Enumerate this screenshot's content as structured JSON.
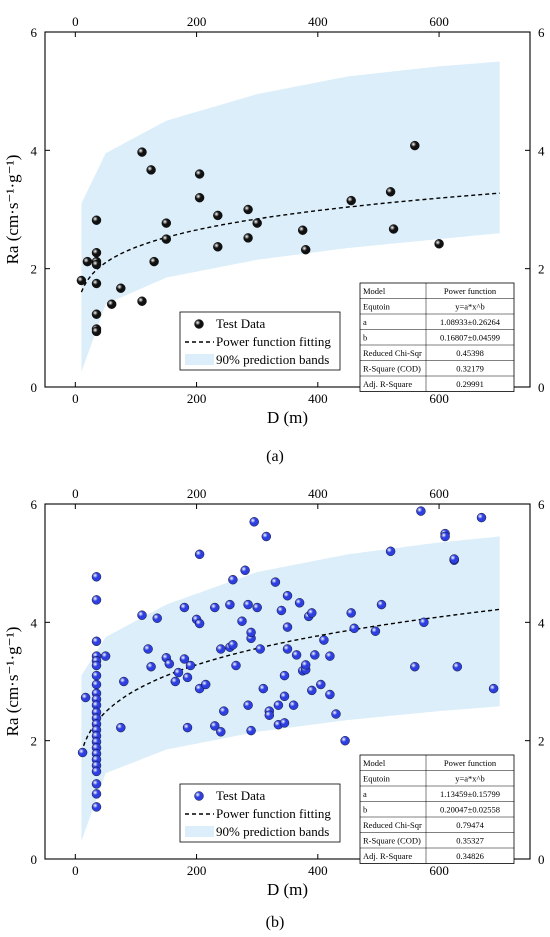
{
  "panels": [
    {
      "caption": "(a)",
      "legend": {
        "point": "Test Data",
        "fit": "Power function fitting",
        "band": "90% prediction bands"
      },
      "table": [
        [
          "Model",
          "Power function"
        ],
        [
          "Equtoin",
          "y=a*x^b"
        ],
        [
          "a",
          "1.08933±0.26264"
        ],
        [
          "b",
          "0.16807±0.04599"
        ],
        [
          "Reduced Chi-Sqr",
          "0.45398"
        ],
        [
          "R-Square (COD)",
          "0.32179"
        ],
        [
          "Adj. R-Square",
          "0.29991"
        ]
      ]
    },
    {
      "caption": "(b)",
      "legend": {
        "point": "Test Data",
        "fit": "Power function fitting",
        "band": "90% prediction bands"
      },
      "table": [
        [
          "Model",
          "Power function"
        ],
        [
          "Equtoin",
          "y=a*x^b"
        ],
        [
          "a",
          "1.13459±0.15799"
        ],
        [
          "b",
          "0.20047±0.02558"
        ],
        [
          "Reduced Chi-Sqr",
          "0.79474"
        ],
        [
          "R-Square (COD)",
          "0.35327"
        ],
        [
          "Adj. R-Square",
          "0.34826"
        ]
      ]
    }
  ],
  "chart_data": [
    {
      "type": "scatter",
      "xlabel": "D (m)",
      "ylabel": "Ra (cm·s⁻¹·g⁻¹)",
      "xlim": [
        -50,
        750
      ],
      "ylim": [
        0,
        6
      ],
      "xticks": [
        0,
        200,
        400,
        600
      ],
      "yticks": [
        0,
        2,
        4,
        6
      ],
      "marker_color": "#111111",
      "band_color": "#dbeef9",
      "fit": {
        "a": 1.08933,
        "b": 0.16807,
        "x_start": 10,
        "x_end": 700
      },
      "band_upper": [
        [
          10,
          3.1
        ],
        [
          50,
          3.95
        ],
        [
          150,
          4.5
        ],
        [
          300,
          4.95
        ],
        [
          450,
          5.25
        ],
        [
          600,
          5.42
        ],
        [
          700,
          5.5
        ]
      ],
      "band_lower": [
        [
          10,
          0.25
        ],
        [
          50,
          1.4
        ],
        [
          150,
          1.85
        ],
        [
          300,
          2.15
        ],
        [
          450,
          2.35
        ],
        [
          600,
          2.5
        ],
        [
          700,
          2.6
        ]
      ],
      "points": [
        [
          10,
          1.8
        ],
        [
          20,
          2.12
        ],
        [
          35,
          2.82
        ],
        [
          35,
          2.27
        ],
        [
          35,
          2.12
        ],
        [
          35,
          2.07
        ],
        [
          35,
          1.75
        ],
        [
          35,
          1.23
        ],
        [
          35,
          0.98
        ],
        [
          35,
          0.94
        ],
        [
          60,
          1.4
        ],
        [
          75,
          1.67
        ],
        [
          110,
          3.97
        ],
        [
          110,
          1.45
        ],
        [
          125,
          3.67
        ],
        [
          130,
          2.12
        ],
        [
          150,
          2.77
        ],
        [
          150,
          2.5
        ],
        [
          205,
          3.6
        ],
        [
          205,
          3.2
        ],
        [
          235,
          2.9
        ],
        [
          235,
          2.37
        ],
        [
          285,
          3.0
        ],
        [
          285,
          2.52
        ],
        [
          300,
          2.77
        ],
        [
          375,
          2.65
        ],
        [
          380,
          2.32
        ],
        [
          455,
          3.15
        ],
        [
          520,
          3.3
        ],
        [
          525,
          2.67
        ],
        [
          560,
          4.08
        ],
        [
          600,
          2.42
        ]
      ]
    },
    {
      "type": "scatter",
      "xlabel": "D (m)",
      "ylabel": "Ra (cm·s⁻¹·g⁻¹)",
      "xlim": [
        -50,
        750
      ],
      "ylim": [
        0,
        6
      ],
      "xticks": [
        0,
        200,
        400,
        600
      ],
      "yticks": [
        0,
        2,
        4,
        6
      ],
      "marker_color": "#2d3fe0",
      "band_color": "#dbeef9",
      "fit": {
        "a": 1.13459,
        "b": 0.20047,
        "x_start": 10,
        "x_end": 700
      },
      "band_upper": [
        [
          10,
          3.1
        ],
        [
          50,
          3.75
        ],
        [
          150,
          4.3
        ],
        [
          300,
          4.85
        ],
        [
          450,
          5.15
        ],
        [
          600,
          5.35
        ],
        [
          700,
          5.45
        ]
      ],
      "band_lower": [
        [
          10,
          0.3
        ],
        [
          50,
          1.45
        ],
        [
          150,
          1.85
        ],
        [
          300,
          2.15
        ],
        [
          450,
          2.35
        ],
        [
          600,
          2.5
        ],
        [
          700,
          2.58
        ]
      ],
      "points": [
        [
          12,
          1.8
        ],
        [
          17,
          2.73
        ],
        [
          35,
          4.77
        ],
        [
          35,
          4.38
        ],
        [
          35,
          3.68
        ],
        [
          35,
          3.43
        ],
        [
          35,
          3.35
        ],
        [
          35,
          3.27
        ],
        [
          35,
          3.1
        ],
        [
          35,
          2.95
        ],
        [
          35,
          2.8
        ],
        [
          35,
          2.7
        ],
        [
          35,
          2.6
        ],
        [
          35,
          2.48
        ],
        [
          35,
          2.38
        ],
        [
          35,
          2.28
        ],
        [
          35,
          2.18
        ],
        [
          35,
          2.08
        ],
        [
          35,
          1.98
        ],
        [
          35,
          1.88
        ],
        [
          35,
          1.78
        ],
        [
          35,
          1.68
        ],
        [
          35,
          1.58
        ],
        [
          35,
          1.48
        ],
        [
          35,
          1.27
        ],
        [
          35,
          1.1
        ],
        [
          35,
          0.88
        ],
        [
          50,
          3.43
        ],
        [
          75,
          2.22
        ],
        [
          80,
          3.0
        ],
        [
          110,
          4.12
        ],
        [
          120,
          3.55
        ],
        [
          125,
          3.25
        ],
        [
          135,
          4.07
        ],
        [
          150,
          3.4
        ],
        [
          155,
          3.3
        ],
        [
          165,
          3.0
        ],
        [
          170,
          3.15
        ],
        [
          180,
          4.25
        ],
        [
          180,
          3.38
        ],
        [
          185,
          3.07
        ],
        [
          185,
          2.22
        ],
        [
          190,
          3.27
        ],
        [
          200,
          4.05
        ],
        [
          205,
          3.98
        ],
        [
          205,
          5.15
        ],
        [
          205,
          2.88
        ],
        [
          215,
          2.95
        ],
        [
          230,
          4.25
        ],
        [
          230,
          2.25
        ],
        [
          240,
          3.55
        ],
        [
          240,
          2.15
        ],
        [
          245,
          2.5
        ],
        [
          255,
          4.3
        ],
        [
          255,
          3.58
        ],
        [
          260,
          4.72
        ],
        [
          260,
          3.62
        ],
        [
          265,
          3.27
        ],
        [
          275,
          4.02
        ],
        [
          280,
          4.88
        ],
        [
          285,
          4.3
        ],
        [
          285,
          2.6
        ],
        [
          290,
          3.73
        ],
        [
          290,
          3.83
        ],
        [
          290,
          2.17
        ],
        [
          295,
          5.7
        ],
        [
          300,
          4.25
        ],
        [
          305,
          3.55
        ],
        [
          310,
          2.88
        ],
        [
          315,
          5.45
        ],
        [
          320,
          2.5
        ],
        [
          320,
          2.43
        ],
        [
          330,
          4.68
        ],
        [
          335,
          2.6
        ],
        [
          335,
          2.27
        ],
        [
          340,
          4.2
        ],
        [
          345,
          3.1
        ],
        [
          345,
          2.75
        ],
        [
          345,
          2.3
        ],
        [
          350,
          4.45
        ],
        [
          350,
          3.55
        ],
        [
          350,
          3.92
        ],
        [
          360,
          2.6
        ],
        [
          365,
          3.45
        ],
        [
          370,
          4.33
        ],
        [
          375,
          3.18
        ],
        [
          380,
          3.2
        ],
        [
          380,
          3.28
        ],
        [
          385,
          4.1
        ],
        [
          390,
          4.16
        ],
        [
          390,
          2.85
        ],
        [
          395,
          3.45
        ],
        [
          405,
          2.95
        ],
        [
          410,
          3.7
        ],
        [
          420,
          2.78
        ],
        [
          420,
          3.43
        ],
        [
          430,
          2.45
        ],
        [
          445,
          2.0
        ],
        [
          455,
          4.16
        ],
        [
          460,
          3.9
        ],
        [
          495,
          3.85
        ],
        [
          505,
          4.3
        ],
        [
          520,
          5.2
        ],
        [
          560,
          3.25
        ],
        [
          570,
          5.88
        ],
        [
          575,
          4.0
        ],
        [
          610,
          5.5
        ],
        [
          610,
          5.45
        ],
        [
          625,
          5.05
        ],
        [
          625,
          5.07
        ],
        [
          630,
          3.25
        ],
        [
          670,
          5.77
        ],
        [
          690,
          2.88
        ]
      ]
    }
  ]
}
